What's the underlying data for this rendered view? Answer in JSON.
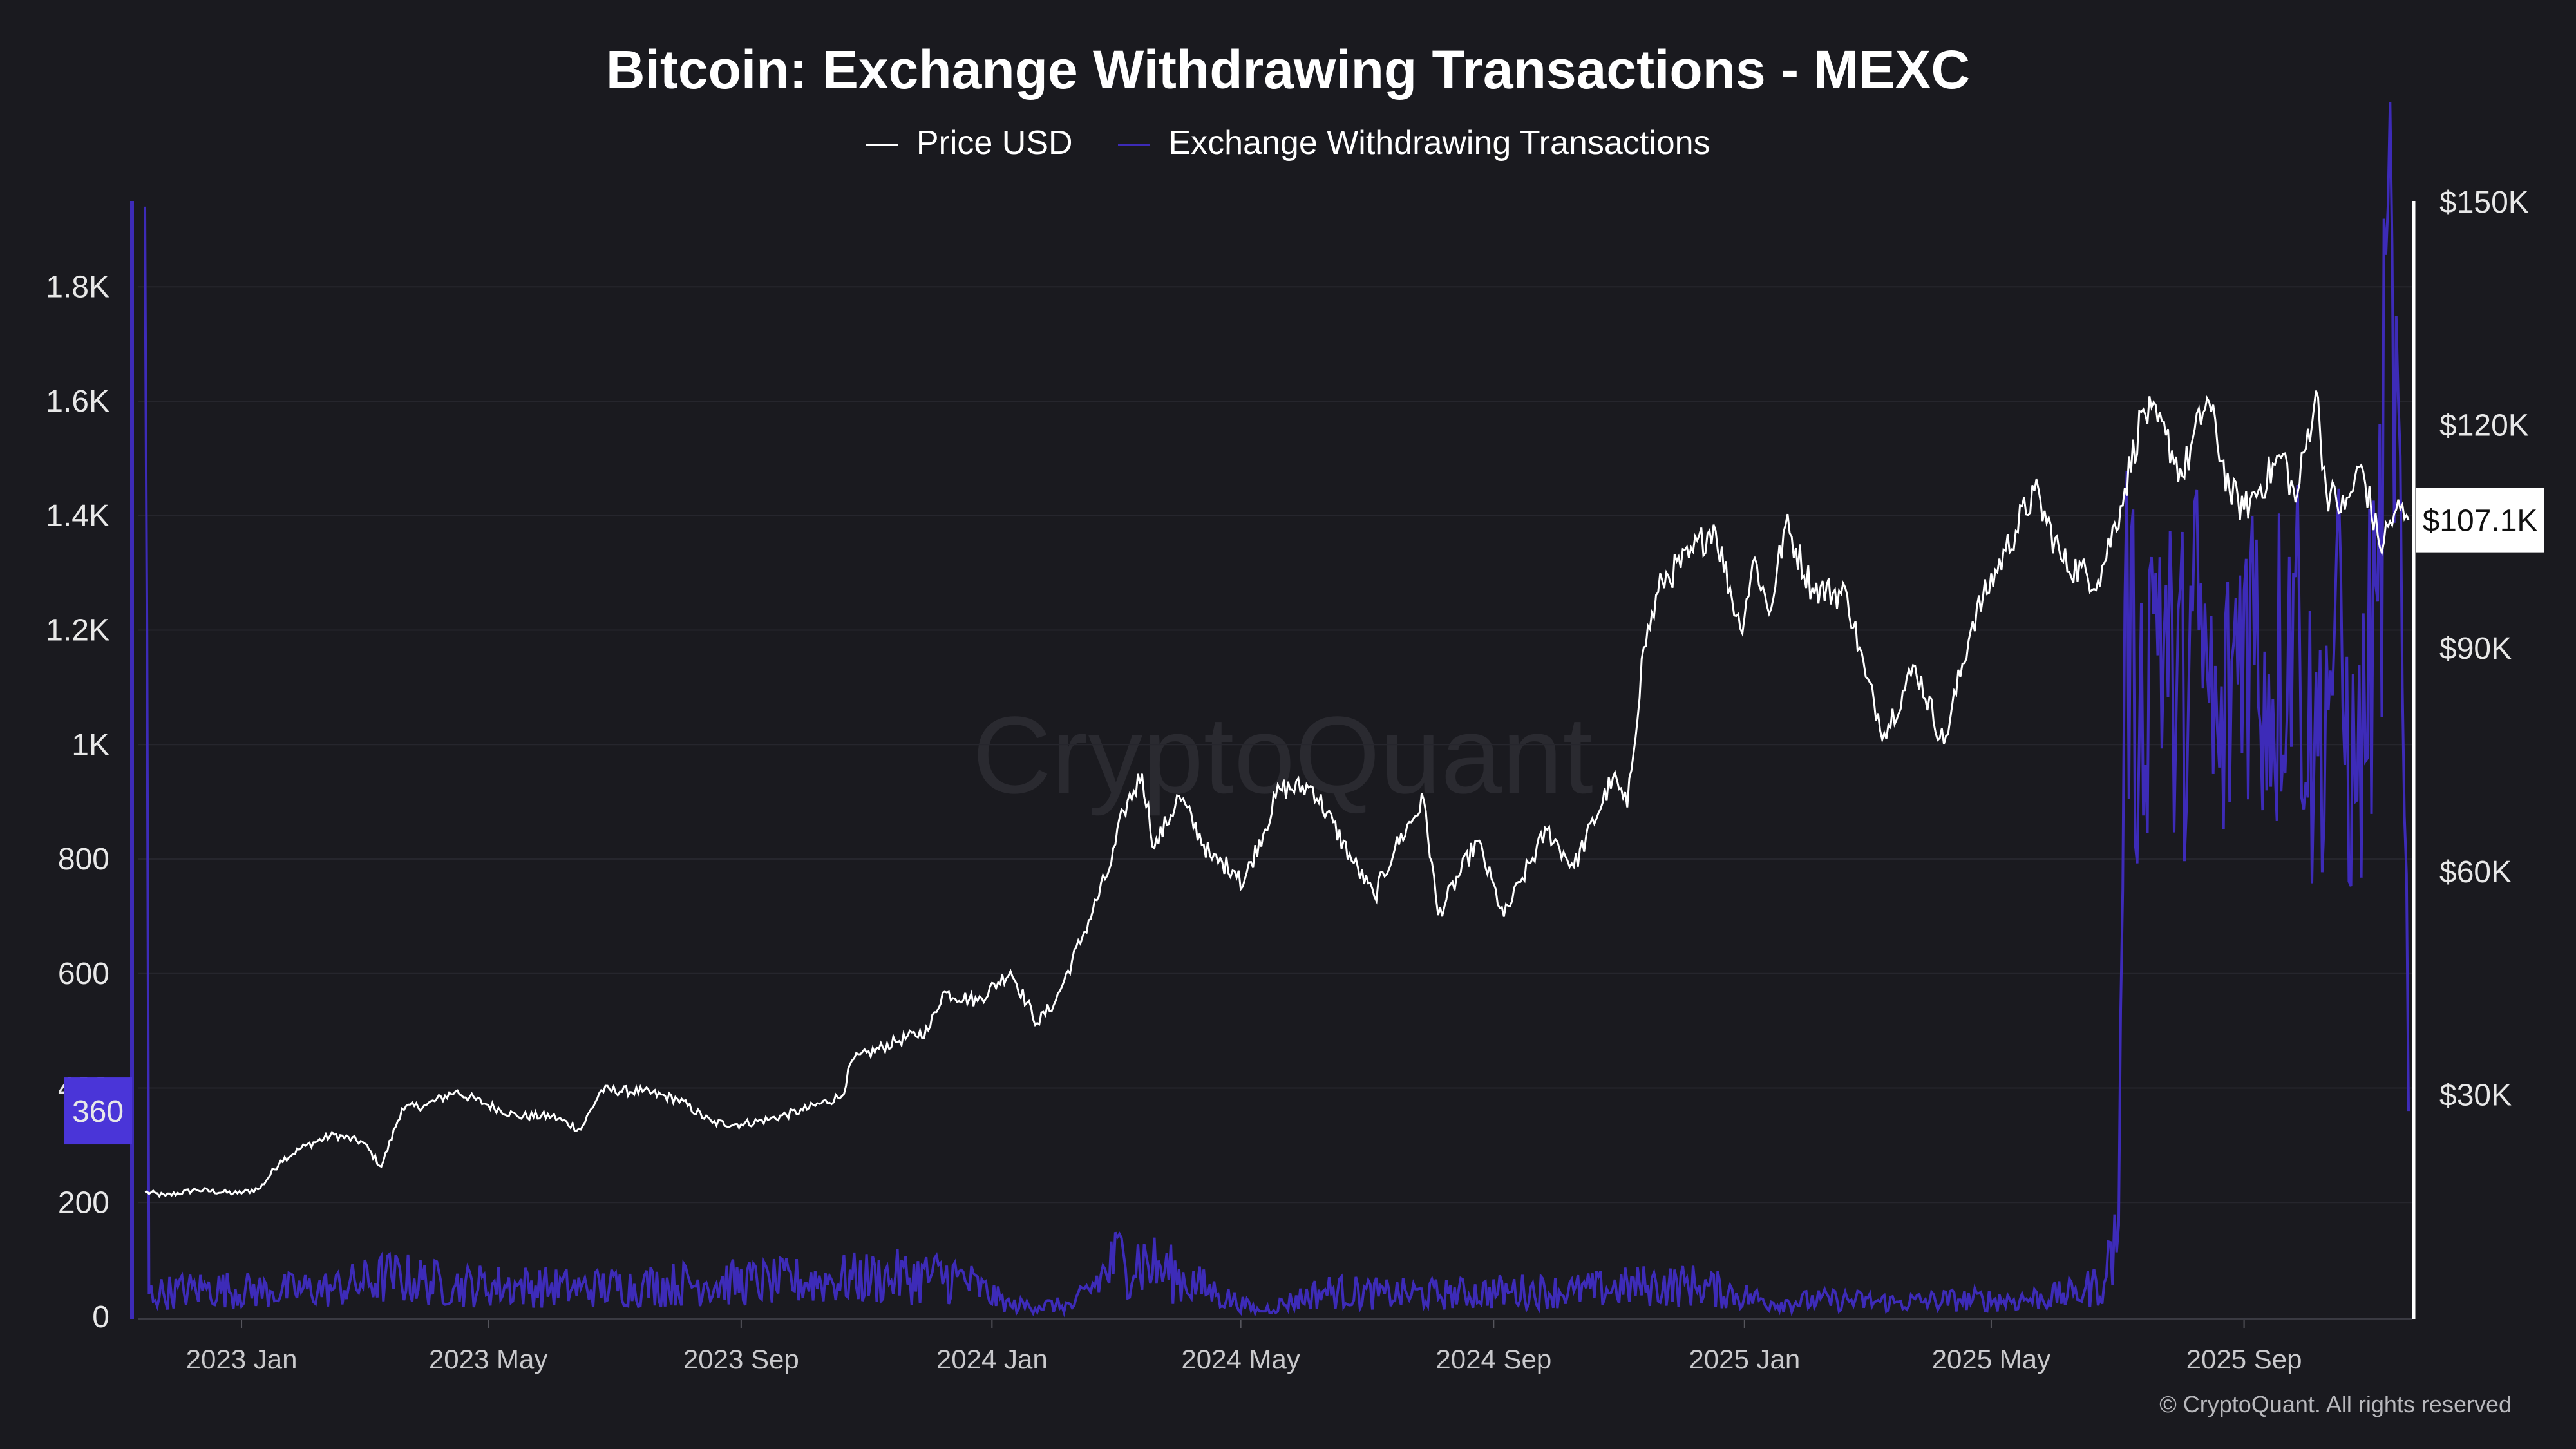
{
  "title": "Bitcoin: Exchange Withdrawing Transactions - MEXC",
  "legend": {
    "price_label": "Price USD",
    "tx_label": "Exchange Withdrawing Transactions"
  },
  "watermark": "CryptoQuant",
  "copyright": "© CryptoQuant. All rights reserved",
  "colors": {
    "background": "#1a1a1f",
    "price": "#ffffff",
    "transactions": "#3d2bb8",
    "tx_badge": "#4a35d8"
  },
  "chart_data": {
    "type": "line",
    "title": "Bitcoin: Exchange Withdrawing Transactions - MEXC",
    "x_ticks": [
      "2023 Jan",
      "2023 May",
      "2023 Sep",
      "2024 Jan",
      "2024 May",
      "2024 Sep",
      "2025 Jan",
      "2025 May",
      "2025 Sep"
    ],
    "x_range": [
      "2022-11-15",
      "2025-11-20"
    ],
    "left_axis": {
      "ticks": [
        "0",
        "200",
        "400",
        "600",
        "800",
        "1K",
        "1.2K",
        "1.4K",
        "1.6K",
        "1.8K"
      ],
      "ylim": [
        0,
        1950
      ]
    },
    "right_axis": {
      "ticks": [
        "$30K",
        "$60K",
        "$90K",
        "$120K",
        "$150K"
      ],
      "ylim": [
        0,
        150000
      ]
    },
    "last_values": {
      "transactions": "360",
      "price": "$107.1K"
    },
    "grid": true,
    "legend_position": "top-center",
    "series": [
      {
        "name": "Price USD",
        "axis": "right",
        "points": [
          [
            "2022-11-15",
            16800
          ],
          [
            "2022-11-25",
            16300
          ],
          [
            "2022-12-10",
            17100
          ],
          [
            "2022-12-30",
            16600
          ],
          [
            "2023-01-10",
            17300
          ],
          [
            "2023-01-20",
            21000
          ],
          [
            "2023-02-01",
            23000
          ],
          [
            "2023-02-15",
            24500
          ],
          [
            "2023-03-01",
            23500
          ],
          [
            "2023-03-10",
            20200
          ],
          [
            "2023-03-20",
            28000
          ],
          [
            "2023-04-01",
            28500
          ],
          [
            "2023-04-15",
            30300
          ],
          [
            "2023-05-01",
            28500
          ],
          [
            "2023-05-15",
            27000
          ],
          [
            "2023-06-01",
            27000
          ],
          [
            "2023-06-15",
            25200
          ],
          [
            "2023-06-25",
            30500
          ],
          [
            "2023-07-15",
            30300
          ],
          [
            "2023-08-01",
            29300
          ],
          [
            "2023-08-18",
            26100
          ],
          [
            "2023-09-01",
            25900
          ],
          [
            "2023-09-15",
            26600
          ],
          [
            "2023-10-01",
            27800
          ],
          [
            "2023-10-20",
            29700
          ],
          [
            "2023-10-25",
            34500
          ],
          [
            "2023-11-15",
            37000
          ],
          [
            "2023-12-01",
            38500
          ],
          [
            "2023-12-08",
            43600
          ],
          [
            "2023-12-25",
            42500
          ],
          [
            "2024-01-10",
            46500
          ],
          [
            "2024-01-23",
            39500
          ],
          [
            "2024-02-01",
            42500
          ],
          [
            "2024-02-15",
            51800
          ],
          [
            "2024-02-28",
            61000
          ],
          [
            "2024-03-05",
            68000
          ],
          [
            "2024-03-14",
            73000
          ],
          [
            "2024-03-20",
            63000
          ],
          [
            "2024-04-01",
            70000
          ],
          [
            "2024-04-17",
            61500
          ],
          [
            "2024-04-30",
            60000
          ],
          [
            "2024-05-01",
            57500
          ],
          [
            "2024-05-20",
            71000
          ],
          [
            "2024-06-05",
            71200
          ],
          [
            "2024-06-25",
            61000
          ],
          [
            "2024-07-05",
            56500
          ],
          [
            "2024-07-15",
            63000
          ],
          [
            "2024-07-29",
            69500
          ],
          [
            "2024-08-05",
            54000
          ],
          [
            "2024-08-24",
            64000
          ],
          [
            "2024-09-06",
            53800
          ],
          [
            "2024-09-15",
            59000
          ],
          [
            "2024-09-27",
            65500
          ],
          [
            "2024-10-10",
            60500
          ],
          [
            "2024-10-29",
            72500
          ],
          [
            "2024-11-05",
            68500
          ],
          [
            "2024-11-13",
            90000
          ],
          [
            "2024-11-22",
            99000
          ],
          [
            "2024-12-05",
            102000
          ],
          [
            "2024-12-17",
            106500
          ],
          [
            "2024-12-30",
            92500
          ],
          [
            "2025-01-06",
            102000
          ],
          [
            "2025-01-13",
            94500
          ],
          [
            "2025-01-21",
            106500
          ],
          [
            "2025-02-03",
            98000
          ],
          [
            "2025-02-20",
            97000
          ],
          [
            "2025-03-01",
            86000
          ],
          [
            "2025-03-10",
            78500
          ],
          [
            "2025-03-25",
            87500
          ],
          [
            "2025-04-08",
            77000
          ],
          [
            "2025-04-22",
            93500
          ],
          [
            "2025-05-08",
            103000
          ],
          [
            "2025-05-22",
            111000
          ],
          [
            "2025-06-05",
            101500
          ],
          [
            "2025-06-22",
            99000
          ],
          [
            "2025-07-03",
            109000
          ],
          [
            "2025-07-14",
            122000
          ],
          [
            "2025-07-25",
            118500
          ],
          [
            "2025-08-02",
            113000
          ],
          [
            "2025-08-14",
            123500
          ],
          [
            "2025-08-25",
            111000
          ],
          [
            "2025-09-01",
            108500
          ],
          [
            "2025-09-20",
            116000
          ],
          [
            "2025-09-26",
            109500
          ],
          [
            "2025-10-06",
            124500
          ],
          [
            "2025-10-11",
            111000
          ],
          [
            "2025-10-20",
            108500
          ],
          [
            "2025-10-28",
            114500
          ],
          [
            "2025-11-06",
            103500
          ],
          [
            "2025-11-14",
            108500
          ],
          [
            "2025-11-20",
            107100
          ]
        ]
      },
      {
        "name": "Exchange Withdrawing Transactions",
        "axis": "left",
        "points": [
          [
            "2022-11-15",
            1940
          ],
          [
            "2022-11-16",
            1200
          ],
          [
            "2022-11-17",
            40
          ],
          [
            "2022-12-15",
            50
          ],
          [
            "2023-01-15",
            45
          ],
          [
            "2023-02-15",
            50
          ],
          [
            "2023-03-15",
            70
          ],
          [
            "2023-04-15",
            55
          ],
          [
            "2023-05-15",
            55
          ],
          [
            "2023-06-15",
            50
          ],
          [
            "2023-07-15",
            55
          ],
          [
            "2023-08-15",
            60
          ],
          [
            "2023-09-15",
            60
          ],
          [
            "2023-10-15",
            65
          ],
          [
            "2023-11-15",
            70
          ],
          [
            "2023-12-15",
            70
          ],
          [
            "2024-01-10",
            20
          ],
          [
            "2024-02-10",
            20
          ],
          [
            "2024-03-05",
            110
          ],
          [
            "2024-03-25",
            80
          ],
          [
            "2024-04-20",
            40
          ],
          [
            "2024-05-10",
            10
          ],
          [
            "2024-06-10",
            45
          ],
          [
            "2024-07-10",
            40
          ],
          [
            "2024-08-10",
            40
          ],
          [
            "2024-09-10",
            45
          ],
          [
            "2024-10-10",
            45
          ],
          [
            "2024-11-15",
            55
          ],
          [
            "2024-12-10",
            55
          ],
          [
            "2025-01-15",
            25
          ],
          [
            "2025-02-15",
            30
          ],
          [
            "2025-03-15",
            25
          ],
          [
            "2025-04-15",
            30
          ],
          [
            "2025-05-15",
            30
          ],
          [
            "2025-06-10",
            40
          ],
          [
            "2025-06-25",
            60
          ],
          [
            "2025-07-02",
            160
          ],
          [
            "2025-07-05",
            1250
          ],
          [
            "2025-07-12",
            1000
          ],
          [
            "2025-07-20",
            1300
          ],
          [
            "2025-07-30",
            1050
          ],
          [
            "2025-08-10",
            1200
          ],
          [
            "2025-08-20",
            960
          ],
          [
            "2025-09-01",
            1270
          ],
          [
            "2025-09-15",
            1080
          ],
          [
            "2025-09-25",
            1300
          ],
          [
            "2025-10-05",
            950
          ],
          [
            "2025-10-15",
            1200
          ],
          [
            "2025-10-25",
            900
          ],
          [
            "2025-11-05",
            1250
          ],
          [
            "2025-11-12",
            1870
          ],
          [
            "2025-11-17",
            1100
          ],
          [
            "2025-11-20",
            360
          ]
        ]
      }
    ]
  }
}
